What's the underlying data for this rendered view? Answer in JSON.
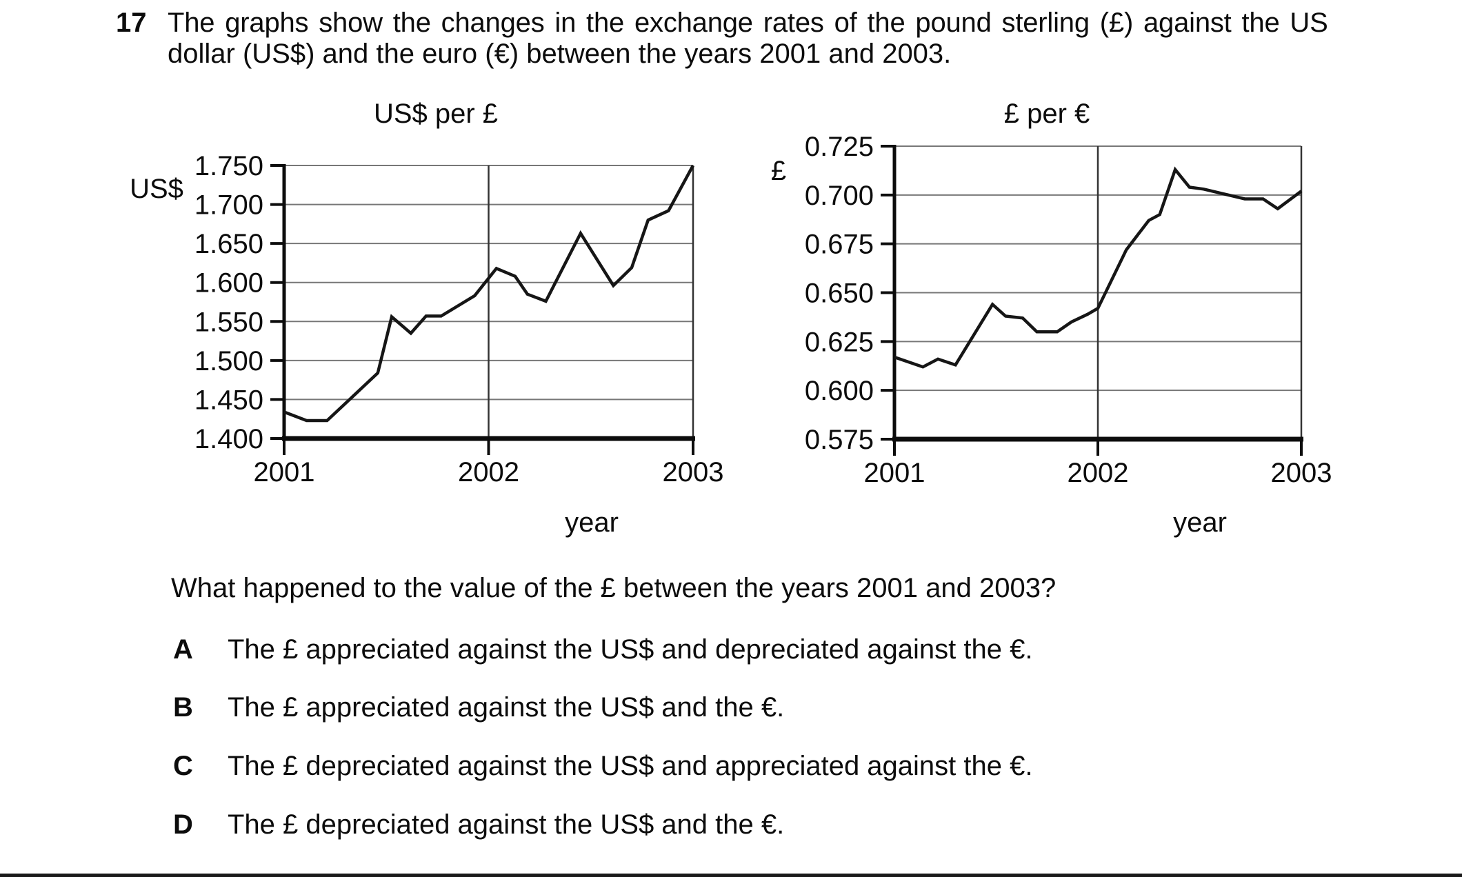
{
  "question": {
    "number": "17",
    "intro_line1": "The graphs show the changes in the exchange rates of the pound sterling (£) against the US",
    "intro_line2": "dollar (US$) and the euro (€) between the years 2001 and 2003.",
    "prompt": "What happened to the value of the £ between the years 2001 and 2003?",
    "options": [
      {
        "letter": "A",
        "text": "The £ appreciated against the US$ and depreciated against the €."
      },
      {
        "letter": "B",
        "text": "The £ appreciated against the US$ and the €."
      },
      {
        "letter": "C",
        "text": "The £ depreciated against the US$ and appreciated against the €."
      },
      {
        "letter": "D",
        "text": "The £ depreciated against the US$ and the €."
      }
    ]
  },
  "colors": {
    "background": "#ffffff",
    "text": "#0c0c0c",
    "data_line": "#161616",
    "grid_h": "#777777",
    "grid_v": "#333333",
    "axis": "#0c0c0c",
    "bottom_bar": "#1a1a1a"
  },
  "chart_data": [
    {
      "type": "line",
      "title": "US$ per £",
      "y_axis_label": "US$",
      "x_axis_label": "year",
      "ylim": [
        1.4,
        1.75
      ],
      "grid": true,
      "y_ticks": [
        {
          "value": 1.75,
          "label": "1.750"
        },
        {
          "value": 1.7,
          "label": "1.700"
        },
        {
          "value": 1.65,
          "label": "1.650"
        },
        {
          "value": 1.6,
          "label": "1.600"
        },
        {
          "value": 1.55,
          "label": "1.550"
        },
        {
          "value": 1.5,
          "label": "1.500"
        },
        {
          "value": 1.45,
          "label": "1.450"
        },
        {
          "value": 1.4,
          "label": "1.400"
        }
      ],
      "x_ticks": [
        {
          "f": 0.0,
          "label": "2001"
        },
        {
          "f": 0.5,
          "label": "2002"
        },
        {
          "f": 1.0,
          "label": "2003"
        }
      ],
      "points": [
        [
          0.0,
          1.434
        ],
        [
          0.055,
          1.423
        ],
        [
          0.105,
          1.423
        ],
        [
          0.229,
          1.484
        ],
        [
          0.263,
          1.556
        ],
        [
          0.31,
          1.535
        ],
        [
          0.347,
          1.557
        ],
        [
          0.384,
          1.557
        ],
        [
          0.466,
          1.583
        ],
        [
          0.519,
          1.618
        ],
        [
          0.565,
          1.608
        ],
        [
          0.595,
          1.585
        ],
        [
          0.64,
          1.576
        ],
        [
          0.725,
          1.663
        ],
        [
          0.805,
          1.596
        ],
        [
          0.85,
          1.619
        ],
        [
          0.89,
          1.68
        ],
        [
          0.94,
          1.692
        ],
        [
          1.0,
          1.75
        ]
      ]
    },
    {
      "type": "line",
      "title": "£ per €",
      "y_axis_label": "£",
      "x_axis_label": "year",
      "ylim": [
        0.575,
        0.725
      ],
      "grid": true,
      "y_ticks": [
        {
          "value": 0.725,
          "label": "0.725"
        },
        {
          "value": 0.7,
          "label": "0.700"
        },
        {
          "value": 0.675,
          "label": "0.675"
        },
        {
          "value": 0.65,
          "label": "0.650"
        },
        {
          "value": 0.625,
          "label": "0.625"
        },
        {
          "value": 0.6,
          "label": "0.600"
        },
        {
          "value": 0.575,
          "label": "0.575"
        }
      ],
      "x_ticks": [
        {
          "f": 0.0,
          "label": "2001"
        },
        {
          "f": 0.5,
          "label": "2002"
        },
        {
          "f": 1.0,
          "label": "2003"
        }
      ],
      "points": [
        [
          0.0,
          0.617
        ],
        [
          0.07,
          0.612
        ],
        [
          0.107,
          0.616
        ],
        [
          0.15,
          0.613
        ],
        [
          0.241,
          0.644
        ],
        [
          0.273,
          0.638
        ],
        [
          0.315,
          0.637
        ],
        [
          0.35,
          0.63
        ],
        [
          0.4,
          0.63
        ],
        [
          0.435,
          0.635
        ],
        [
          0.475,
          0.639
        ],
        [
          0.5,
          0.642
        ],
        [
          0.57,
          0.672
        ],
        [
          0.625,
          0.687
        ],
        [
          0.652,
          0.69
        ],
        [
          0.69,
          0.713
        ],
        [
          0.725,
          0.704
        ],
        [
          0.76,
          0.703
        ],
        [
          0.861,
          0.698
        ],
        [
          0.906,
          0.698
        ],
        [
          0.942,
          0.693
        ],
        [
          1.0,
          0.702
        ]
      ]
    }
  ]
}
